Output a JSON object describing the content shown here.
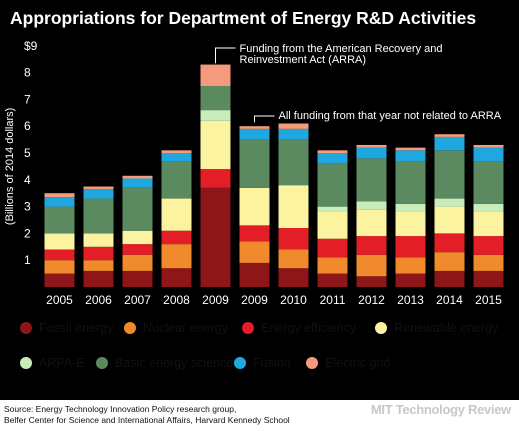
{
  "chart_data": {
    "type": "bar",
    "stacked": true,
    "title": "Appropriations for Department of Energy R&D Activities",
    "ylabel": "(Billions of 2014 dollars)",
    "xlabel": "",
    "ylim": [
      0,
      9
    ],
    "yticks": [
      1,
      2,
      3,
      4,
      5,
      6,
      7,
      8,
      9
    ],
    "ytick_labels": [
      "1",
      "2",
      "3",
      "4",
      "5",
      "6",
      "7",
      "8",
      "$9"
    ],
    "categories": [
      "2005",
      "2006",
      "2007",
      "2008",
      "2009",
      "2009",
      "2010",
      "2011",
      "2012",
      "2013",
      "2014",
      "2015"
    ],
    "grid": false,
    "legend_position": "bottom",
    "series": [
      {
        "name": "Fossil energy",
        "color": "#8e1518",
        "values": [
          0.5,
          0.6,
          0.6,
          0.7,
          3.7,
          0.9,
          0.7,
          0.5,
          0.4,
          0.5,
          0.6,
          0.6
        ]
      },
      {
        "name": "Nuclear energy",
        "color": "#f08a2c",
        "values": [
          0.5,
          0.4,
          0.6,
          0.9,
          0.0,
          0.8,
          0.7,
          0.6,
          0.8,
          0.6,
          0.7,
          0.6
        ]
      },
      {
        "name": "Energy efficiency",
        "color": "#e41e26",
        "values": [
          0.4,
          0.5,
          0.4,
          0.5,
          0.7,
          0.6,
          0.8,
          0.7,
          0.7,
          0.8,
          0.7,
          0.7
        ]
      },
      {
        "name": "Renewable energy",
        "color": "#fbf3a0",
        "values": [
          0.6,
          0.5,
          0.5,
          1.2,
          1.8,
          1.4,
          1.6,
          1.0,
          1.0,
          0.9,
          1.0,
          0.9
        ]
      },
      {
        "name": "ARPA-E",
        "color": "#c9ecbb",
        "values": [
          0.0,
          0.0,
          0.0,
          0.0,
          0.4,
          0.0,
          0.0,
          0.2,
          0.3,
          0.3,
          0.3,
          0.3
        ]
      },
      {
        "name": "Basic energy science",
        "color": "#5c8a60",
        "values": [
          1.0,
          1.3,
          1.6,
          1.4,
          0.9,
          1.8,
          1.7,
          1.6,
          1.6,
          1.6,
          1.8,
          1.6
        ]
      },
      {
        "name": "Fusion",
        "color": "#1fa7e0",
        "values": [
          0.35,
          0.35,
          0.35,
          0.3,
          0.0,
          0.4,
          0.4,
          0.4,
          0.4,
          0.4,
          0.5,
          0.5
        ]
      },
      {
        "name": "Electric grid",
        "color": "#f59a7c",
        "values": [
          0.15,
          0.1,
          0.1,
          0.1,
          0.8,
          0.1,
          0.2,
          0.1,
          0.1,
          0.1,
          0.1,
          0.1
        ]
      }
    ],
    "annotations": [
      {
        "text": "Funding from the American Recovery and Reinvestment Act (ARRA)",
        "category_index": 4,
        "value": 8.2
      },
      {
        "text": "All funding from that year not related to ARRA",
        "category_index": 5,
        "value": 6.0
      }
    ],
    "source": "Source:  Energy Technology Innovation Policy research group, Belfer Center for Science and International Affairs, Harvard Kennedy School",
    "brand": "MIT Technology Review"
  }
}
